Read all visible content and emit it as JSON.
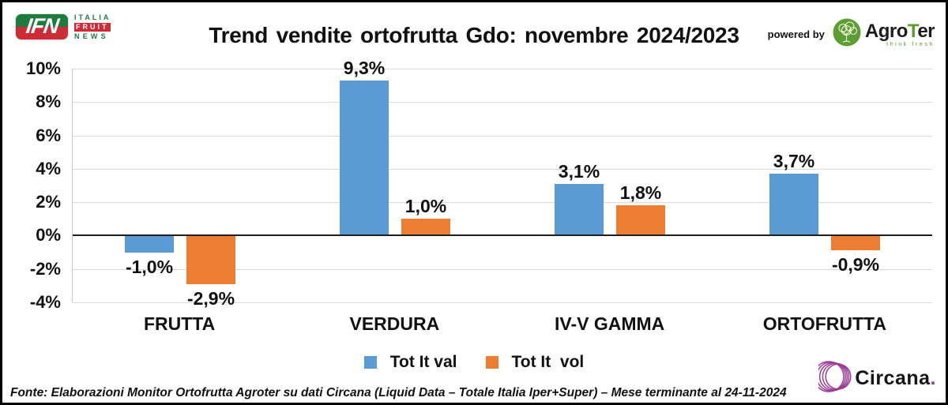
{
  "header": {
    "powered_by": "powered by",
    "ifn_logo": {
      "abbr": "IFN",
      "line1": "ITALIA",
      "line2": "FRUIT",
      "line3": "NEWS"
    },
    "agroter_logo": {
      "name_pre": "Agro",
      "name_t": "T",
      "name_post": "er",
      "tagline": "think fresh"
    }
  },
  "chart_data": {
    "type": "bar",
    "title": "Trend vendite ortofrutta Gdo: novembre 2024/2023",
    "categories": [
      "FRUTTA",
      "VERDURA",
      "IV-V GAMMA",
      "ORTOFRUTTA"
    ],
    "series": [
      {
        "name": "Tot It val",
        "color": "#5B9BD5",
        "values": [
          -1.0,
          9.3,
          3.1,
          3.7
        ],
        "labels": [
          "-1,0%",
          "9,3%",
          "3,1%",
          "3,7%"
        ]
      },
      {
        "name": "Tot It  vol",
        "color": "#ED7D31",
        "values": [
          -2.9,
          1.0,
          1.8,
          -0.9
        ],
        "labels": [
          "-2,9%",
          "1,0%",
          "1,8%",
          "-0,9%"
        ]
      }
    ],
    "y_axis": {
      "min": -4,
      "max": 10,
      "step": 2,
      "ticks": [
        {
          "label": "10%",
          "value": 10
        },
        {
          "label": "8%",
          "value": 8
        },
        {
          "label": "6%",
          "value": 6
        },
        {
          "label": "4%",
          "value": 4
        },
        {
          "label": "2%",
          "value": 2
        },
        {
          "label": "0%",
          "value": 0
        },
        {
          "label": "-2%",
          "value": -2
        },
        {
          "label": "-4%",
          "value": -4
        }
      ]
    },
    "grid": true,
    "legend_position": "bottom"
  },
  "footer": {
    "source": "Fonte: Elaborazioni Monitor Ortofrutta Agroter su dati Circana (Liquid Data – Totale Italia Iper+Super) – Mese terminante al 24-11-2024",
    "circana_logo": {
      "name": "Circana",
      "dot": "."
    }
  },
  "colors": {
    "series_val": "#5B9BD5",
    "series_vol": "#ED7D31",
    "gridline": "#D9D9D9",
    "zero_line": "#1f1f1f",
    "ifn_green": "#1E7B3C",
    "ifn_red": "#CE2B37",
    "agroter_green": "#5C9E31",
    "circana_purple": "#9B3D96"
  }
}
